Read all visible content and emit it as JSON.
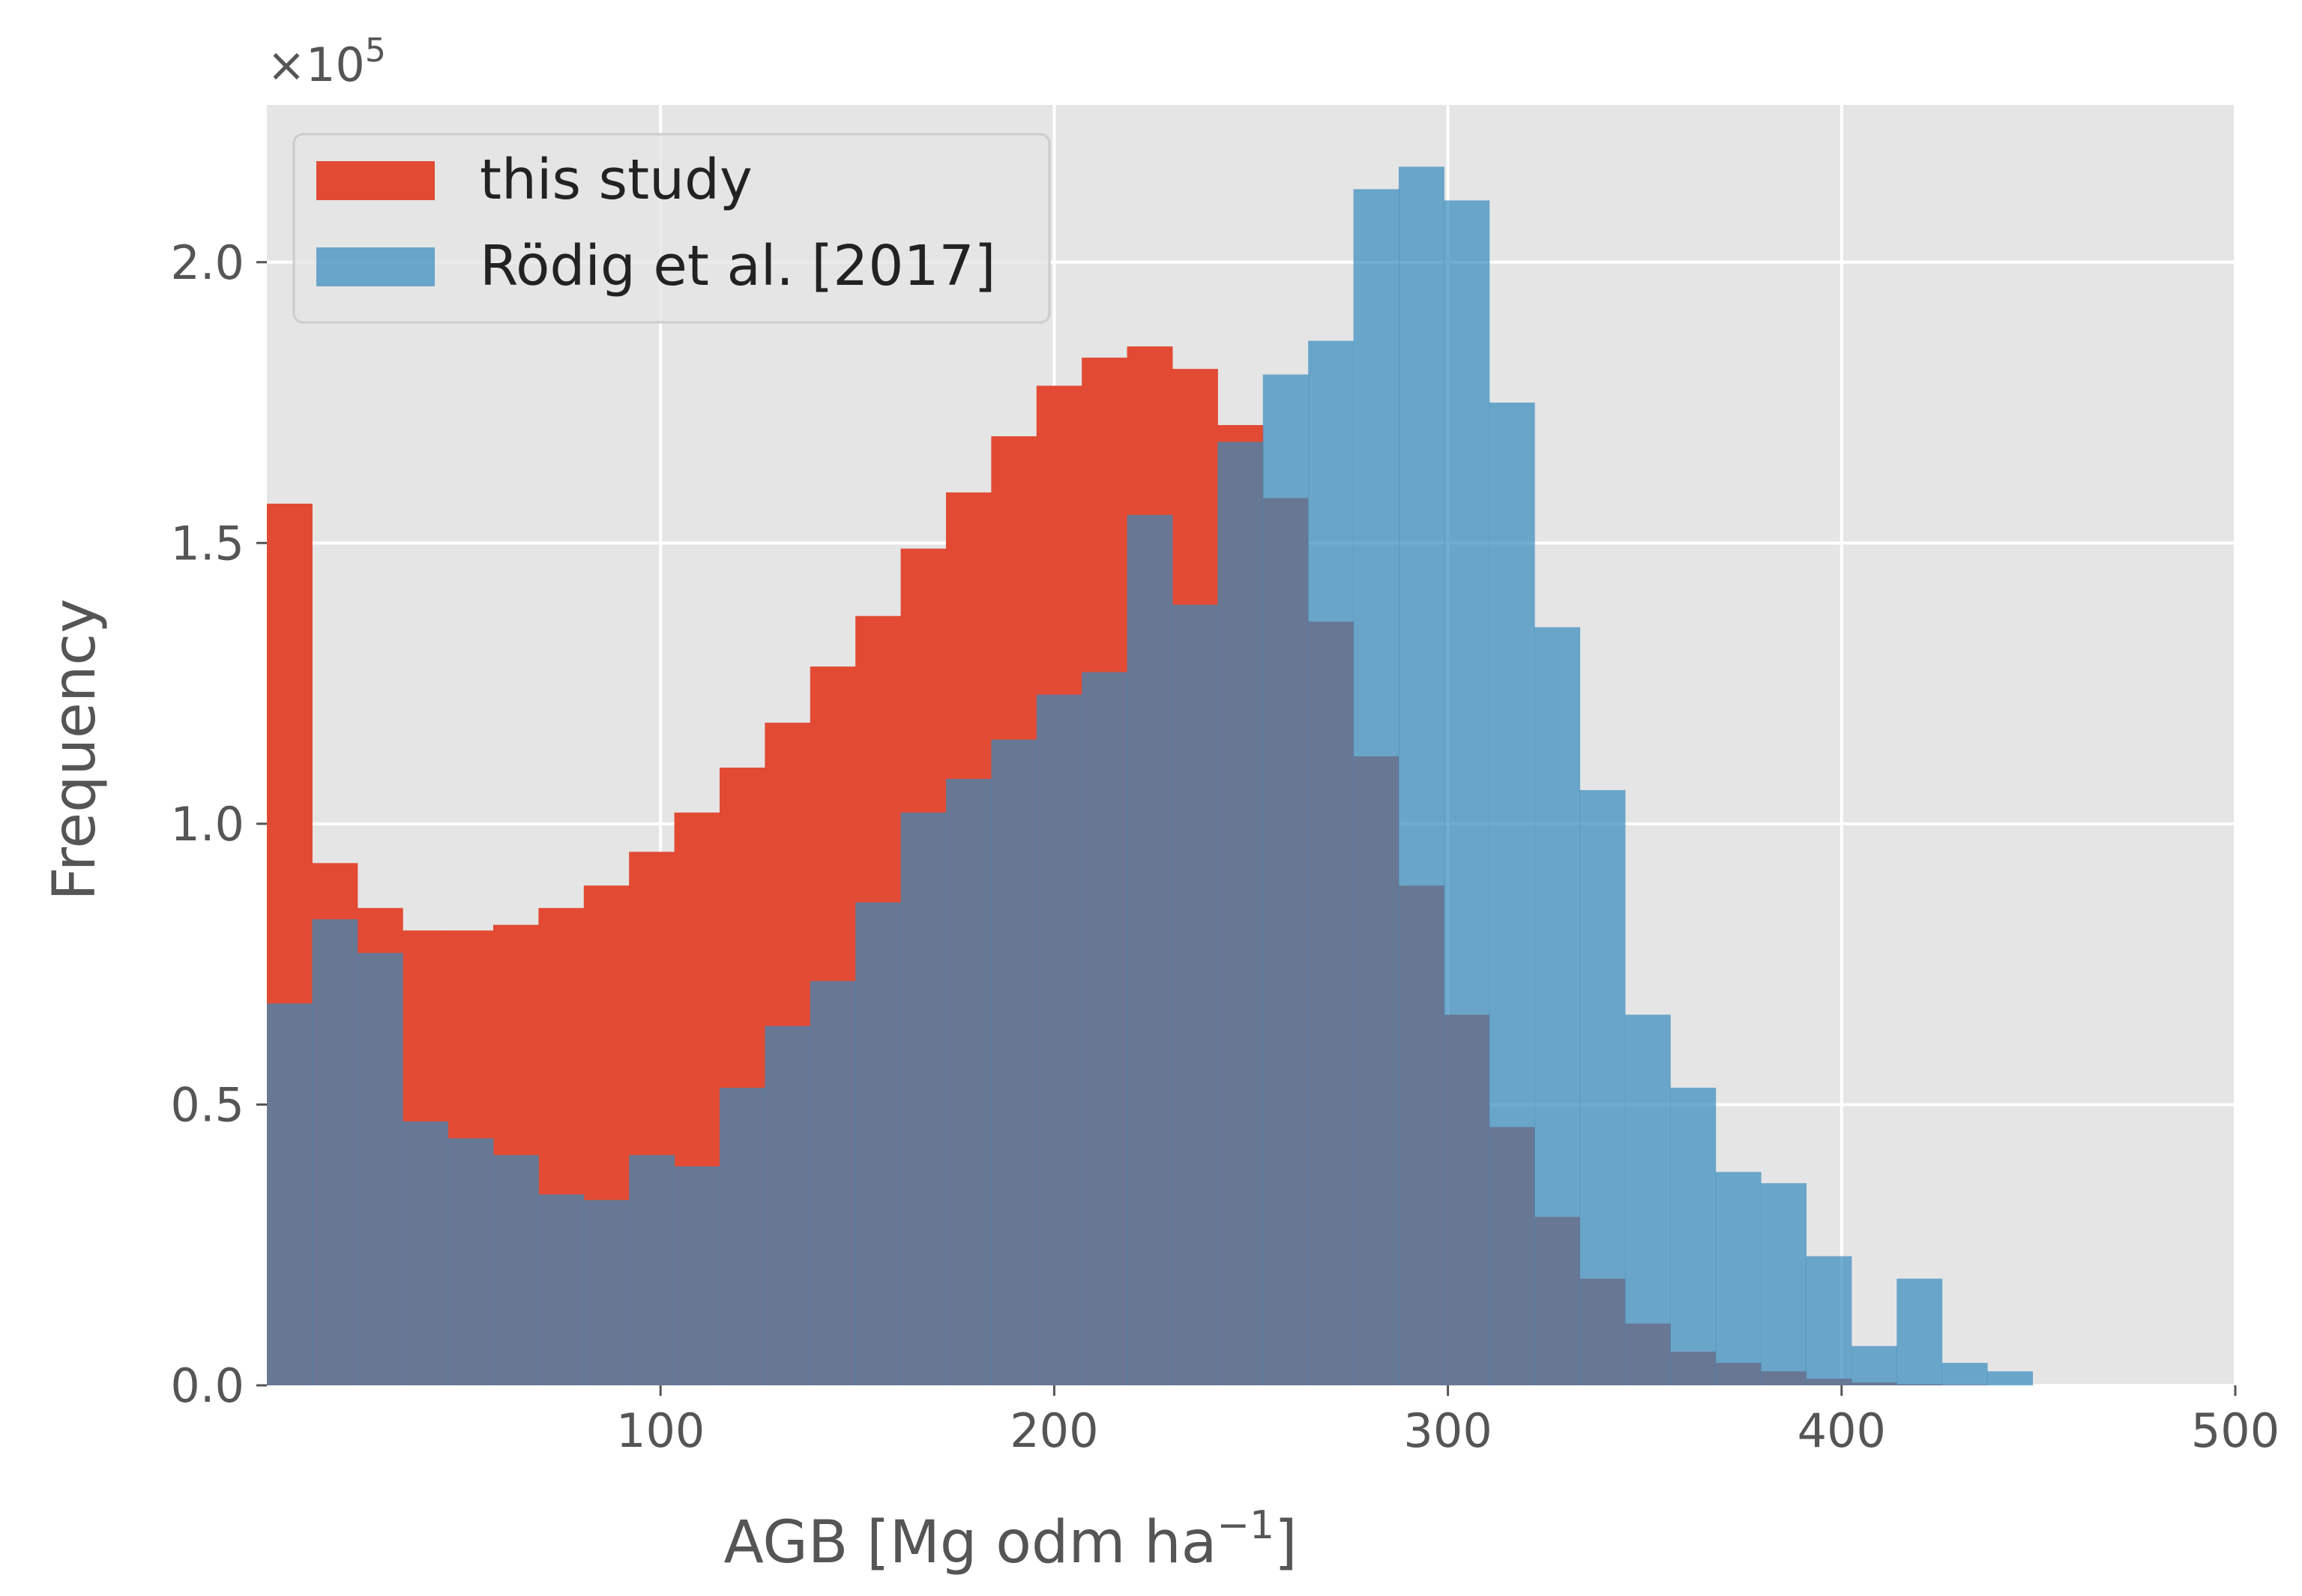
{
  "chart_data": {
    "type": "bar",
    "title": "",
    "xlabel": "AGB [Mg odm ha",
    "xlabel_sup": "−1",
    "xlabel_close": "]",
    "ylabel": "Frequency",
    "offset_text": "×10",
    "offset_exp": "5",
    "xlim": [
      0,
      500
    ],
    "ylim": [
      0,
      2.28
    ],
    "y_scale_note": "values in units of 1e5",
    "grid": true,
    "legend_position": "upper-left",
    "x_ticks": [
      100,
      200,
      300,
      400,
      500
    ],
    "x_tick_labels": [
      "100",
      "200",
      "300",
      "400",
      "500"
    ],
    "y_ticks": [
      0.0,
      0.5,
      1.0,
      1.5,
      2.0
    ],
    "y_tick_labels": [
      "0.0",
      "0.5",
      "1.0",
      "1.5",
      "2.0"
    ],
    "bin_edges": [
      0,
      11.5,
      23,
      34.5,
      46,
      57.5,
      69,
      80.5,
      92,
      103.5,
      115,
      126.5,
      138,
      149.5,
      161,
      172.5,
      184,
      195.5,
      207,
      218.5,
      230,
      241.5,
      253,
      264.5,
      276,
      287.5,
      299,
      310.5,
      322,
      333.5,
      345,
      356.5,
      368,
      379.5,
      391,
      402.5,
      414,
      425.5,
      437,
      448.5
    ],
    "series": [
      {
        "name": "this study",
        "color": "#E24A33",
        "values": [
          1.57,
          0.93,
          0.85,
          0.81,
          0.81,
          0.82,
          0.85,
          0.89,
          0.95,
          1.02,
          1.1,
          1.18,
          1.28,
          1.37,
          1.49,
          1.59,
          1.69,
          1.78,
          1.83,
          1.85,
          1.81,
          1.71,
          1.58,
          1.36,
          1.12,
          0.89,
          0.66,
          0.46,
          0.3,
          0.19,
          0.11,
          0.06,
          0.04,
          0.025,
          0.012,
          0.005,
          0.002,
          0.001,
          0.0
        ]
      },
      {
        "name": "Rödig et al. [2017]",
        "color": "#348ABD",
        "values": [
          0.68,
          0.83,
          0.77,
          0.47,
          0.44,
          0.41,
          0.34,
          0.33,
          0.41,
          0.39,
          0.53,
          0.64,
          0.72,
          0.86,
          1.02,
          1.08,
          1.15,
          1.23,
          1.27,
          1.55,
          1.39,
          1.68,
          1.8,
          1.86,
          2.13,
          2.17,
          2.11,
          1.75,
          1.35,
          1.06,
          0.66,
          0.53,
          0.38,
          0.36,
          0.23,
          0.07,
          0.19,
          0.04,
          0.025
        ]
      }
    ],
    "overlap_color": "#66768F"
  }
}
